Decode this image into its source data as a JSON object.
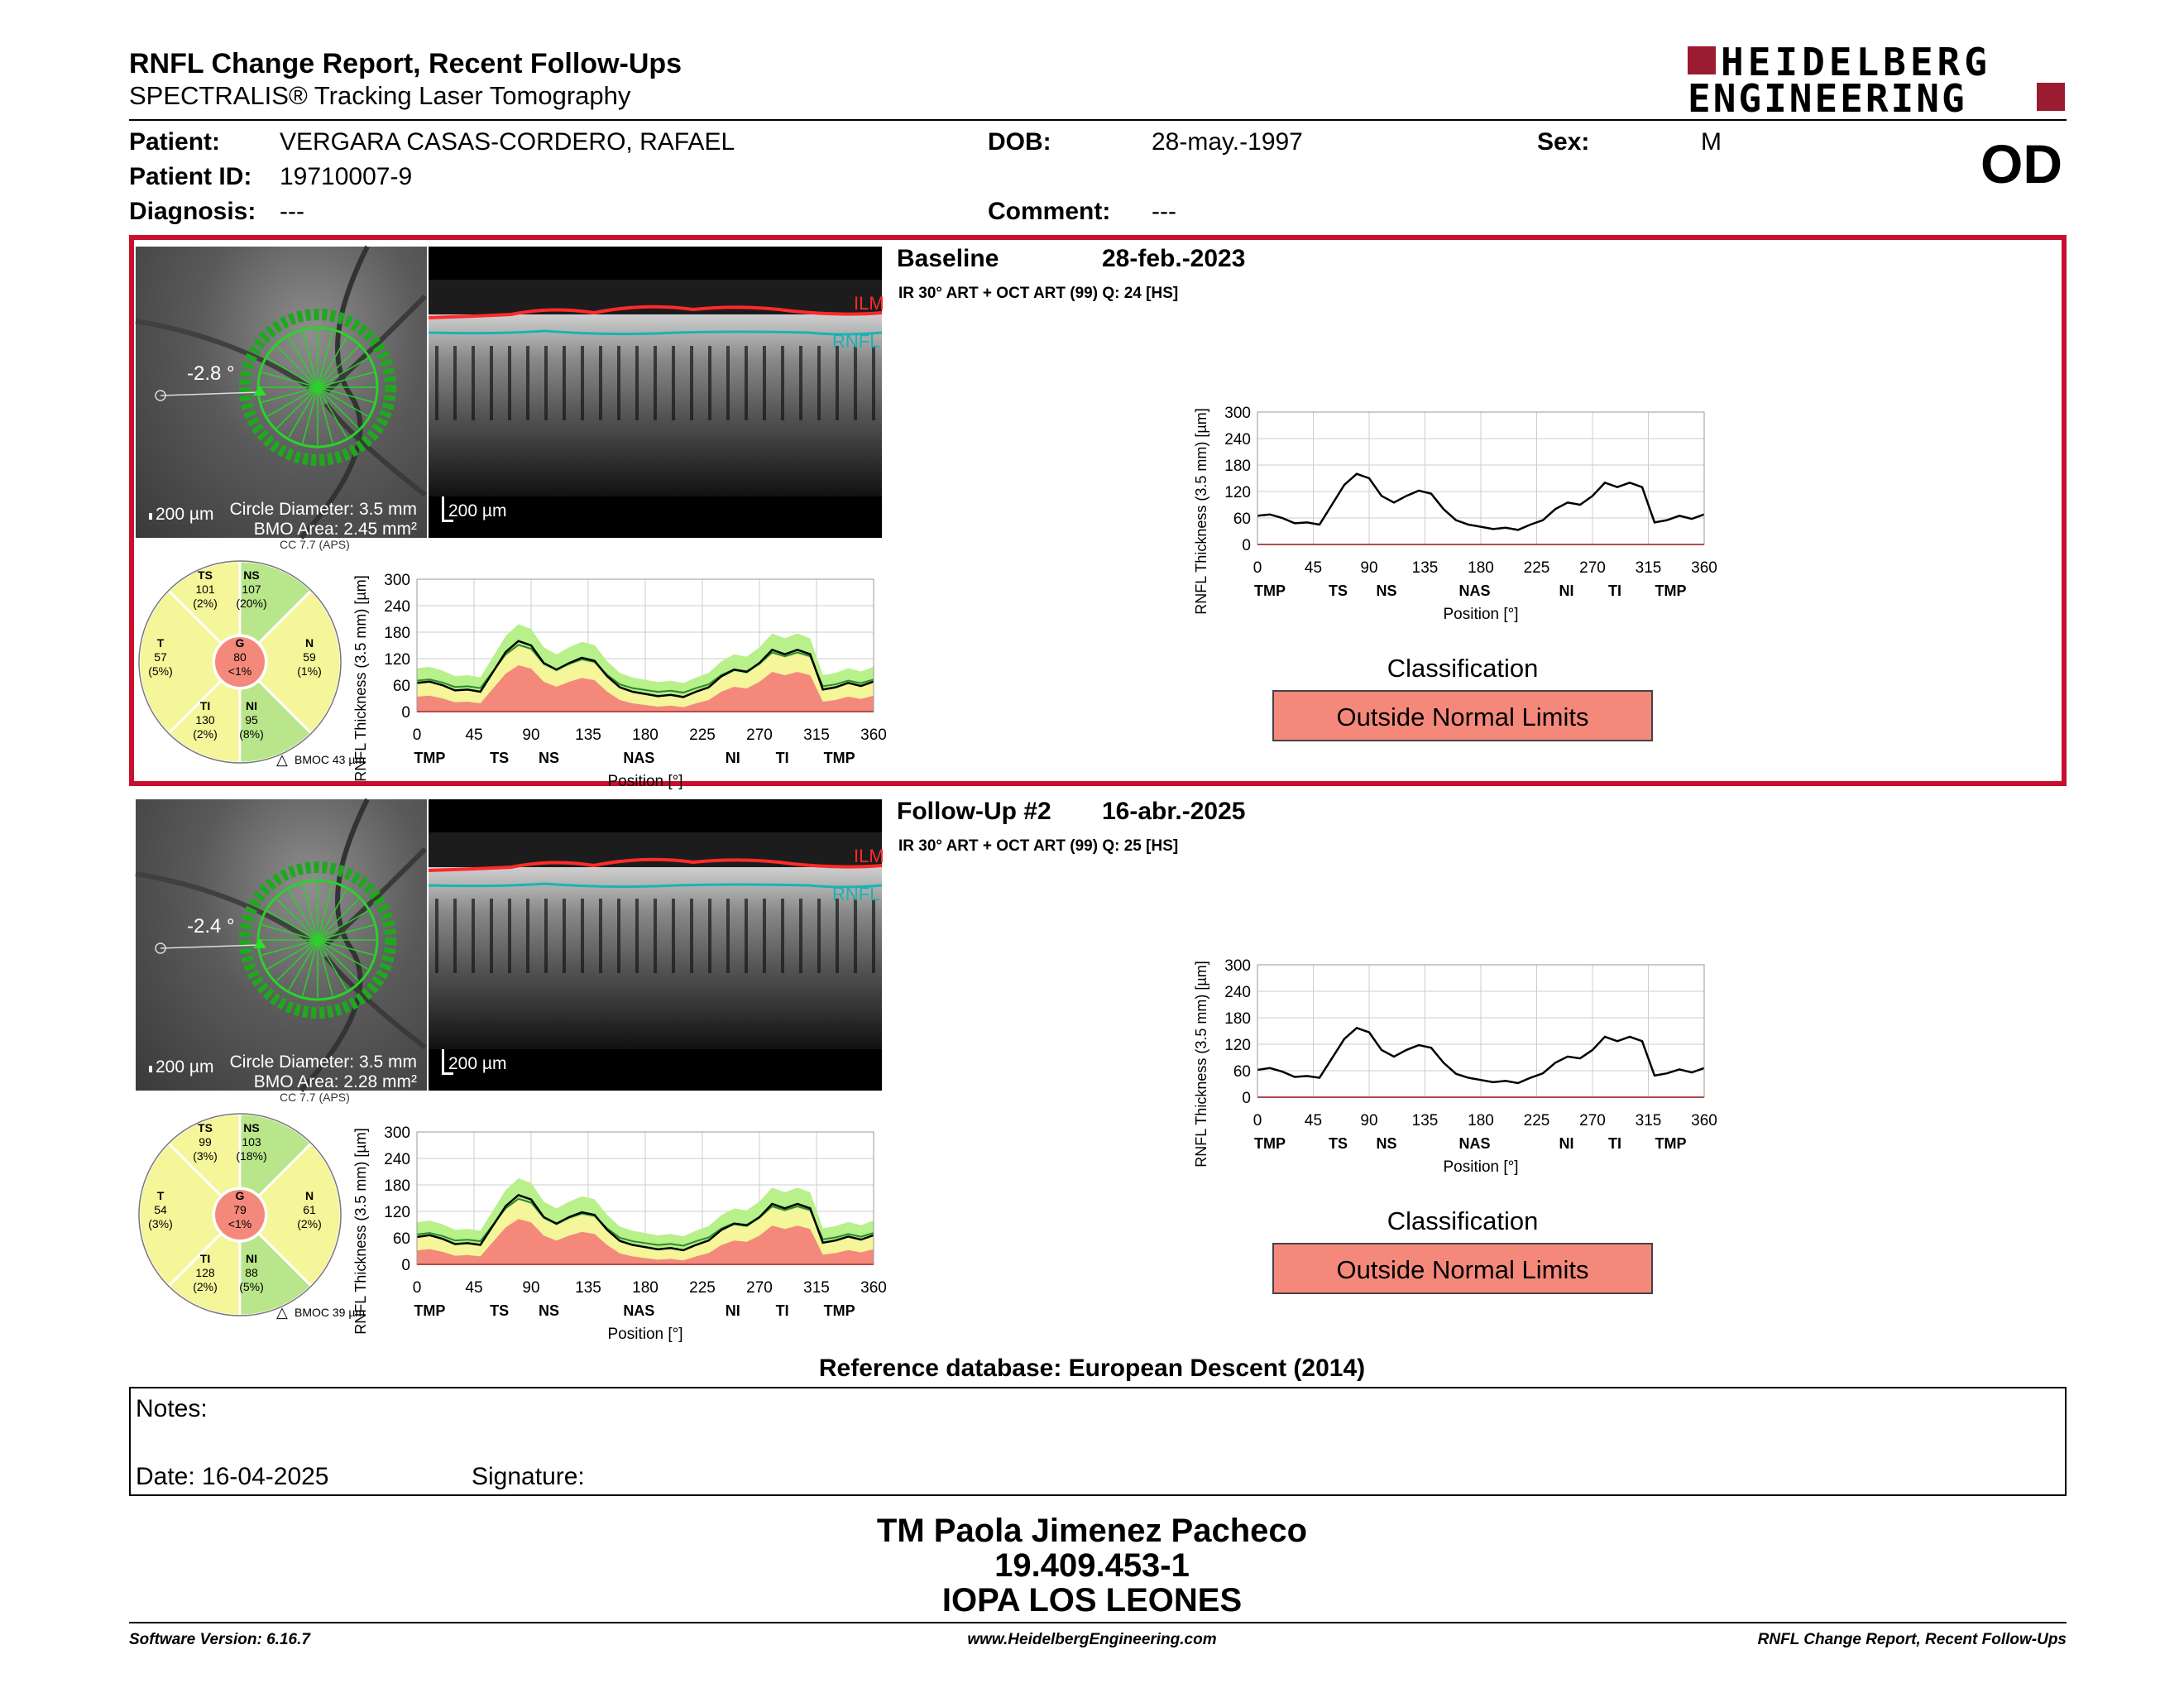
{
  "header": {
    "title": "RNFL Change Report, Recent Follow-Ups",
    "subtitle": "SPECTRALIS® Tracking Laser Tomography",
    "logo_line1": "HEIDELBERG",
    "logo_line2": "ENGINEERING",
    "eye": "OD"
  },
  "patient": {
    "patient_label": "Patient:",
    "patient_value": "VERGARA CASAS-CORDERO, RAFAEL",
    "dob_label": "DOB:",
    "dob_value": "28-may.-1997",
    "sex_label": "Sex:",
    "sex_value": "M",
    "id_label": "Patient ID:",
    "id_value": "19710007-9",
    "diagnosis_label": "Diagnosis:",
    "diagnosis_value": "---",
    "comment_label": "Comment:",
    "comment_value": "---"
  },
  "scans": [
    {
      "title": "Baseline",
      "date": "28-feb.-2023",
      "sub": "IR 30° ART + OCT ART (99) Q: 24 [HS]",
      "angle": "-2.8 °",
      "scale_fundus": "200 µm",
      "circle_diameter": "Circle Diameter: 3.5 mm",
      "bmo_area": "BMO Area: 2.45 mm²",
      "scale_oct": "200 µm",
      "ilm": "ILM",
      "rnfl": "RNFL",
      "cc": "CC 7.7 (APS)",
      "bmoc": "BMOC 43 µm",
      "sectors": {
        "TS": {
          "label": "TS",
          "value": "101",
          "pct": "(2%)",
          "color": "#f5f59a"
        },
        "NS": {
          "label": "NS",
          "value": "107",
          "pct": "(20%)",
          "color": "#b9e68a"
        },
        "T": {
          "label": "T",
          "value": "57",
          "pct": "(5%)",
          "color": "#f5f59a"
        },
        "G": {
          "label": "G",
          "value": "80",
          "pct": "<1%",
          "color": "#f4897b"
        },
        "N": {
          "label": "N",
          "value": "59",
          "pct": "(1%)",
          "color": "#f5f59a"
        },
        "TI": {
          "label": "TI",
          "value": "130",
          "pct": "(2%)",
          "color": "#f5f59a"
        },
        "NI": {
          "label": "NI",
          "value": "95",
          "pct": "(8%)",
          "color": "#b9e68a"
        }
      },
      "classification_label": "Classification",
      "classification": "Outside Normal Limits"
    },
    {
      "title": "Follow-Up #2",
      "date": "16-abr.-2025",
      "sub": "IR 30° ART + OCT ART (99) Q: 25 [HS]",
      "angle": "-2.4 °",
      "scale_fundus": "200 µm",
      "circle_diameter": "Circle Diameter: 3.5 mm",
      "bmo_area": "BMO Area: 2.28 mm²",
      "scale_oct": "200 µm",
      "ilm": "ILM",
      "rnfl": "RNFL",
      "cc": "CC 7.7 (APS)",
      "bmoc": "BMOC 39 µm",
      "sectors": {
        "TS": {
          "label": "TS",
          "value": "99",
          "pct": "(3%)",
          "color": "#f5f59a"
        },
        "NS": {
          "label": "NS",
          "value": "103",
          "pct": "(18%)",
          "color": "#b9e68a"
        },
        "T": {
          "label": "T",
          "value": "54",
          "pct": "(3%)",
          "color": "#f5f59a"
        },
        "G": {
          "label": "G",
          "value": "79",
          "pct": "<1%",
          "color": "#f4897b"
        },
        "N": {
          "label": "N",
          "value": "61",
          "pct": "(2%)",
          "color": "#f5f59a"
        },
        "TI": {
          "label": "TI",
          "value": "128",
          "pct": "(2%)",
          "color": "#f5f59a"
        },
        "NI": {
          "label": "NI",
          "value": "88",
          "pct": "(5%)",
          "color": "#b9e68a"
        }
      },
      "classification_label": "Classification",
      "classification": "Outside Normal Limits"
    }
  ],
  "chart_axes": {
    "ylabel": "RNFL Thickness (3.5 mm) [µm]",
    "xlabel": "Position [°]",
    "yticks": [
      "0",
      "60",
      "120",
      "180",
      "240",
      "300"
    ],
    "xticks": [
      "0",
      "45",
      "90",
      "135",
      "180",
      "225",
      "270",
      "315",
      "360"
    ],
    "sectors": [
      "TMP",
      "TS",
      "NS",
      "NAS",
      "NI",
      "TI",
      "TMP"
    ],
    "sector_positions": [
      10,
      65,
      104,
      175,
      249,
      288,
      333
    ],
    "ylim": [
      0,
      300
    ],
    "xlim": [
      0,
      360
    ]
  },
  "chart_data": [
    {
      "type": "line",
      "title": "",
      "xlabel": "Position [°]",
      "ylabel": "RNFL Thickness (3.5 mm) [µm]",
      "ylim": [
        0,
        300
      ],
      "xlim": [
        0,
        360
      ],
      "x": [
        0,
        10,
        20,
        30,
        40,
        50,
        60,
        70,
        80,
        90,
        100,
        110,
        120,
        130,
        140,
        150,
        160,
        170,
        180,
        190,
        200,
        210,
        220,
        230,
        240,
        250,
        260,
        270,
        280,
        290,
        300,
        310,
        320,
        330,
        340,
        350,
        360
      ],
      "series": [
        {
          "values": [
            65,
            68,
            60,
            48,
            50,
            45,
            90,
            135,
            160,
            150,
            110,
            95,
            110,
            122,
            115,
            80,
            55,
            45,
            40,
            35,
            38,
            33,
            45,
            55,
            80,
            95,
            90,
            110,
            140,
            130,
            140,
            130,
            50,
            55,
            65,
            58,
            68
          ]
        },
        {
          "values": [
            62,
            66,
            58,
            46,
            48,
            44,
            88,
            132,
            157,
            147,
            107,
            92,
            107,
            118,
            112,
            78,
            53,
            44,
            39,
            34,
            37,
            32,
            44,
            54,
            78,
            92,
            88,
            107,
            137,
            127,
            137,
            127,
            49,
            54,
            63,
            56,
            66
          ]
        }
      ]
    }
  ],
  "refdb": "Reference database: European Descent (2014)",
  "notes": {
    "label": "Notes:",
    "date": "Date: 16-04-2025",
    "signature": "Signature:"
  },
  "signature_block": {
    "name": "TM Paola Jimenez Pacheco",
    "rut": "19.409.453-1",
    "place": "IOPA LOS LEONES"
  },
  "footer": {
    "left": "Software Version: 6.16.7",
    "center": "www.HeidelbergEngineering.com",
    "right": "RNFL Change Report, Recent Follow-Ups"
  }
}
